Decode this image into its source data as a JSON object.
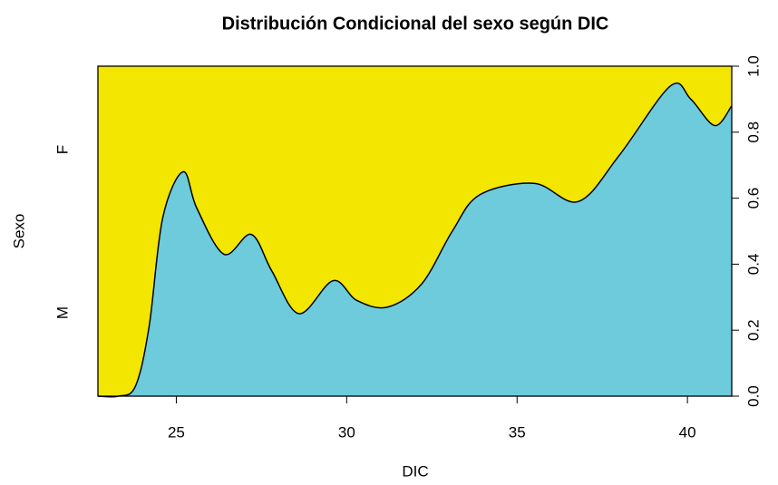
{
  "chart_data": {
    "type": "cdplot",
    "title": "Distribución Condicional del sexo según DIC",
    "x_label": "DIC",
    "y_label": "Sexo",
    "levels": [
      "M",
      "F"
    ],
    "colors": [
      "#6dcbdc",
      "#f3e600"
    ],
    "x": [
      22.7,
      23.3,
      23.8,
      24.2,
      24.6,
      25.2,
      25.6,
      26.4,
      27.2,
      27.8,
      28.6,
      29.6,
      30.3,
      31.2,
      32.2,
      33.1,
      33.9,
      35.5,
      36.8,
      38.0,
      39.5,
      40.1,
      40.8,
      41.3
    ],
    "values": [
      0,
      0,
      0.03,
      0.21,
      0.54,
      0.68,
      0.57,
      0.43,
      0.49,
      0.38,
      0.25,
      0.35,
      0.29,
      0.27,
      0.34,
      0.5,
      0.61,
      0.645,
      0.59,
      0.73,
      0.94,
      0.9,
      0.82,
      0.88
    ],
    "xlim": [
      22.7,
      41.3
    ],
    "ylim": [
      0,
      1
    ],
    "xticks": [
      25,
      30,
      35,
      40
    ],
    "yticks": [
      {
        "value": 0,
        "label": "0.0"
      },
      0.2,
      0.4,
      0.6,
      0.8,
      {
        "value": 1,
        "label": "1.0"
      }
    ]
  }
}
